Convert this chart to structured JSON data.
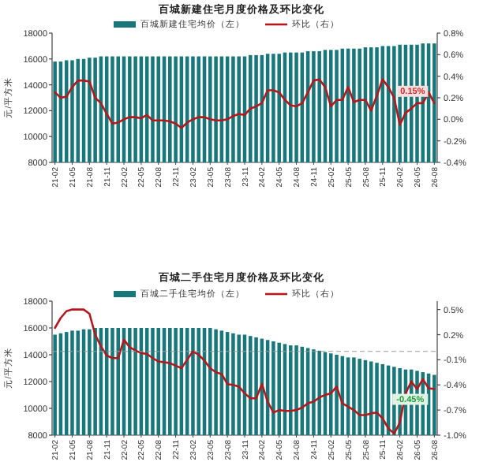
{
  "chart_data": [
    {
      "type": "bar",
      "title": "百城新建住宅月度价格及环比变化",
      "ylabel": "元/平方米",
      "legend": "top",
      "grid": false,
      "categories": [
        "21-02",
        null,
        null,
        "21-05",
        null,
        null,
        "21-08",
        null,
        null,
        "21-11",
        null,
        null,
        "22-02",
        null,
        null,
        "22-05",
        null,
        null,
        "22-08",
        null,
        null,
        "22-11",
        null,
        null,
        "23-02",
        null,
        null,
        "23-05",
        null,
        null,
        "23-08",
        null,
        null,
        "23-11",
        null,
        null,
        "24-02",
        null,
        null,
        "24-05",
        null,
        null,
        "24-08",
        null,
        null,
        "24-11",
        null,
        null,
        "25-02",
        null,
        null,
        "25-05",
        null,
        null,
        "25-08",
        null,
        null,
        "25-11",
        null,
        null,
        "26-02",
        null,
        null,
        "26-05",
        null,
        null,
        "26-08"
      ],
      "ylim": [
        8000,
        18000
      ],
      "yticks": [
        8000,
        10000,
        12000,
        14000,
        16000,
        18000
      ],
      "y2lim": [
        -0.4,
        0.8
      ],
      "y2ticks": [
        {
          "value": -0.4,
          "label": "-0.4%"
        },
        {
          "value": -0.2,
          "label": "-0.2%"
        },
        {
          "value": 0,
          "label": "0.0%"
        },
        {
          "value": 0.2,
          "label": "0.2%"
        },
        {
          "value": 0.4,
          "label": "0.4%"
        },
        {
          "value": 0.6,
          "label": "0.6%"
        },
        {
          "value": 0.8,
          "label": "0.8%"
        }
      ],
      "series": [
        {
          "name": "百城新建住宅均价（左）",
          "color": "#17777a",
          "values": [
            15800,
            15800,
            15900,
            15900,
            16000,
            16000,
            16100,
            16100,
            16200,
            16200,
            16200,
            16200,
            16200,
            16200,
            16200,
            16200,
            16200,
            16200,
            16200,
            16200,
            16200,
            16200,
            16200,
            16200,
            16200,
            16200,
            16200,
            16200,
            16200,
            16200,
            16200,
            16200,
            16200,
            16200,
            16300,
            16300,
            16300,
            16400,
            16400,
            16400,
            16500,
            16500,
            16500,
            16500,
            16600,
            16600,
            16600,
            16700,
            16700,
            16700,
            16800,
            16800,
            16800,
            16800,
            16900,
            16900,
            16900,
            17000,
            17000,
            17000,
            17100,
            17100,
            17100,
            17100,
            17200,
            17200,
            17200
          ]
        },
        {
          "name": "环比（右）",
          "type": "line",
          "axis": "y2",
          "color": "#b3181d",
          "values": [
            0.25,
            0.2,
            0.21,
            0.3,
            0.36,
            0.36,
            0.35,
            0.2,
            0.15,
            0.05,
            -0.04,
            -0.03,
            0.0,
            0.02,
            0.02,
            0.01,
            0.04,
            -0.01,
            -0.01,
            -0.01,
            -0.02,
            -0.04,
            -0.08,
            -0.03,
            0.0,
            0.02,
            0.02,
            0.0,
            -0.01,
            -0.01,
            0.0,
            0.03,
            0.05,
            0.04,
            0.1,
            0.12,
            0.15,
            0.27,
            0.27,
            0.25,
            0.18,
            0.13,
            0.12,
            0.15,
            0.25,
            0.36,
            0.37,
            0.3,
            0.12,
            0.18,
            0.18,
            0.3,
            0.16,
            0.18,
            0.18,
            0.08,
            0.22,
            0.37,
            0.3,
            0.2,
            -0.05,
            0.06,
            0.1,
            0.15,
            0.15,
            0.25,
            0.15
          ]
        }
      ],
      "annotations": [
        "0.15%"
      ]
    },
    {
      "type": "bar",
      "title": "百城二手住宅月度价格及环比变化",
      "ylabel": "元/平方米",
      "legend": "top",
      "grid": false,
      "categories": [
        "21-02",
        null,
        null,
        "21-05",
        null,
        null,
        "21-08",
        null,
        null,
        "21-11",
        null,
        null,
        "22-02",
        null,
        null,
        "22-05",
        null,
        null,
        "22-08",
        null,
        null,
        "22-11",
        null,
        null,
        "23-02",
        null,
        null,
        "23-05",
        null,
        null,
        "23-08",
        null,
        null,
        "23-11",
        null,
        null,
        "24-02",
        null,
        null,
        "24-05",
        null,
        null,
        "24-08",
        null,
        null,
        "24-11",
        null,
        null,
        "25-02",
        null,
        null,
        "25-05",
        null,
        null,
        "25-08",
        null,
        null,
        "25-11",
        null,
        null,
        "26-02",
        null,
        null,
        "26-05",
        null,
        null,
        "26-08"
      ],
      "ylim": [
        8000,
        18000
      ],
      "yticks": [
        8000,
        10000,
        12000,
        14000,
        16000,
        18000
      ],
      "y2lim": [
        -1.0,
        0.6
      ],
      "y2ticks": [
        {
          "value": -1.0,
          "label": "-1.0%"
        },
        {
          "value": -0.7,
          "label": "-0.7%"
        },
        {
          "value": -0.4,
          "label": "-0.4%"
        },
        {
          "value": -0.1,
          "label": "-0.1%"
        },
        {
          "value": 0.2,
          "label": "0.2%"
        },
        {
          "value": 0.5,
          "label": "0.5%"
        }
      ],
      "ref_lines": [
        {
          "axis": "y2",
          "value": 0,
          "label": null,
          "color": "#9a9a9a",
          "line_style": "dashed"
        }
      ],
      "series": [
        {
          "name": "百城二手住宅均价（左）",
          "color": "#17777a",
          "values": [
            15500,
            15600,
            15700,
            15800,
            15800,
            15900,
            15900,
            16000,
            16000,
            16000,
            16000,
            16000,
            16000,
            16000,
            16000,
            16000,
            16000,
            16000,
            16000,
            16000,
            16000,
            16000,
            16000,
            16000,
            16000,
            16000,
            16000,
            16000,
            15900,
            15800,
            15700,
            15600,
            15500,
            15500,
            15400,
            15300,
            15200,
            15100,
            15000,
            14900,
            14800,
            14700,
            14700,
            14600,
            14500,
            14400,
            14300,
            14200,
            14100,
            14000,
            13900,
            13800,
            13800,
            13700,
            13600,
            13500,
            13400,
            13300,
            13200,
            13100,
            13000,
            12900,
            12900,
            12800,
            12700,
            12600,
            12500
          ]
        },
        {
          "name": "环比（右）",
          "type": "line",
          "axis": "y2",
          "color": "#b3181d",
          "values": [
            0.28,
            0.4,
            0.48,
            0.5,
            0.5,
            0.5,
            0.45,
            0.2,
            0.06,
            -0.05,
            -0.08,
            -0.08,
            0.14,
            0.05,
            0.01,
            -0.02,
            -0.03,
            -0.08,
            -0.12,
            -0.13,
            -0.14,
            -0.17,
            -0.2,
            -0.1,
            0.0,
            -0.04,
            -0.11,
            -0.2,
            -0.25,
            -0.27,
            -0.39,
            -0.4,
            -0.42,
            -0.5,
            -0.56,
            -0.56,
            -0.39,
            -0.6,
            -0.73,
            -0.7,
            -0.71,
            -0.71,
            -0.7,
            -0.67,
            -0.62,
            -0.6,
            -0.55,
            -0.52,
            -0.5,
            -0.42,
            -0.62,
            -0.66,
            -0.7,
            -0.76,
            -0.76,
            -0.74,
            -0.73,
            -0.8,
            -0.92,
            -0.98,
            -0.85,
            -0.5,
            -0.36,
            -0.45,
            -0.33,
            -0.44,
            -0.45
          ]
        }
      ],
      "annotations": [
        "-0.45%"
      ]
    }
  ]
}
